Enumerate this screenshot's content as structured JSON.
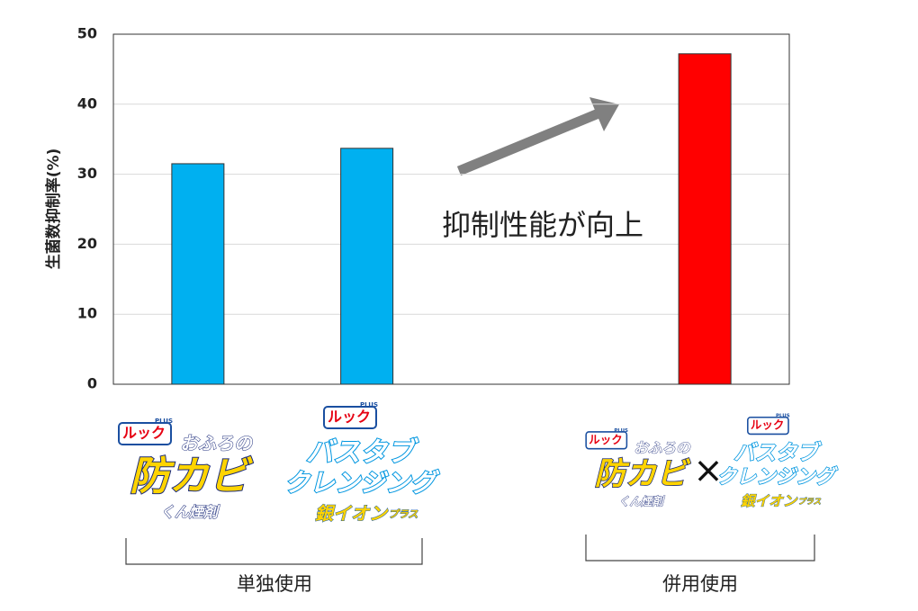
{
  "chart_data": {
    "type": "bar",
    "y_label": "生菌数抑制率(%)",
    "categories": [
      null,
      null,
      null,
      null
    ],
    "values": [
      31.5,
      33.7,
      null,
      47.2
    ],
    "colors": [
      "#00b0f0",
      "#00b0f0",
      null,
      "#ff0000"
    ],
    "ylim": [
      0,
      50
    ],
    "yticks": [
      0,
      10,
      20,
      30,
      40,
      50
    ],
    "grid": true,
    "annotation": "抑制性能が向上",
    "logos": [
      {
        "brand": "ルック",
        "plus": "PLUS",
        "lines": [
          "おふろの",
          "防カビ",
          "くん煙剤"
        ]
      },
      {
        "brand": "ルック",
        "plus": "PLUS",
        "lines": [
          "バスタブ",
          "クレンジング",
          "銀イオン",
          "プラス"
        ]
      },
      {
        "brand": "ルック",
        "plus": "PLUS",
        "lines": [
          "おふろの",
          "防カビ",
          "くん煙剤"
        ]
      },
      {
        "brand": "ルック",
        "plus": "PLUS",
        "lines": [
          "バスタブ",
          "クレンジング",
          "銀イオン",
          "プラス"
        ]
      }
    ],
    "times": "×",
    "groups": [
      "単独使用",
      "併用使用"
    ]
  }
}
